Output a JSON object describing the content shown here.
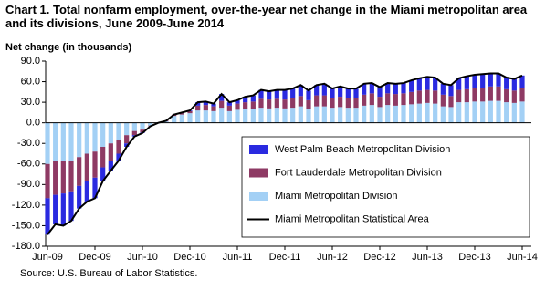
{
  "chart_data": {
    "type": "stacked-bar-line",
    "title": "Chart 1. Total nonfarm employment, over-the-year net change in the Miami metropolitan area and its divisions, June 2009-June 2014",
    "y_label": "Net change (in thousands)",
    "source": "Source: U.S. Bureau of Labor Statistics.",
    "categories": [
      "Jun-09",
      null,
      null,
      null,
      null,
      null,
      "Dec-09",
      null,
      null,
      null,
      null,
      null,
      "Jun-10",
      null,
      null,
      null,
      null,
      null,
      "Dec-10",
      null,
      null,
      null,
      null,
      null,
      "Jun-11",
      null,
      null,
      null,
      null,
      null,
      "Dec-11",
      null,
      null,
      null,
      null,
      null,
      "Jun-12",
      null,
      null,
      null,
      null,
      null,
      "Dec-12",
      null,
      null,
      null,
      null,
      null,
      "Jun-13",
      null,
      null,
      null,
      null,
      null,
      "Dec-13",
      null,
      null,
      null,
      null,
      null,
      "Jun-14"
    ],
    "series": [
      {
        "name": "West Palm Beach Metropolitan Division",
        "color": "#2a2ae0",
        "kind": "bar",
        "values": [
          -53,
          -43,
          -47,
          -43,
          -33,
          -30,
          -30,
          -20,
          -15,
          -10,
          -5,
          -2,
          -1,
          0,
          0,
          0,
          0,
          1,
          1,
          5,
          5,
          4,
          10,
          5,
          5,
          8,
          9,
          13,
          12,
          13,
          14,
          14,
          16,
          14,
          15,
          17,
          14,
          15,
          14,
          14,
          16,
          15,
          14,
          15,
          15,
          15,
          17,
          18,
          19,
          19,
          16,
          16,
          17,
          19,
          19,
          20,
          19,
          19,
          17,
          17,
          18
        ]
      },
      {
        "name": "Fort Lauderdale Metropolitan Division",
        "color": "#8e3a64",
        "kind": "bar",
        "values": [
          -50,
          -50,
          -48,
          -45,
          -42,
          -40,
          -38,
          -30,
          -25,
          -20,
          -12,
          -6,
          -4,
          -1,
          0,
          1,
          2,
          2,
          3,
          7,
          8,
          7,
          10,
          8,
          9,
          10,
          11,
          13,
          13,
          13,
          13,
          14,
          15,
          13,
          16,
          16,
          14,
          15,
          14,
          14,
          16,
          17,
          15,
          17,
          17,
          17,
          18,
          19,
          19,
          19,
          17,
          16,
          18,
          19,
          20,
          20,
          21,
          21,
          19,
          18,
          20
        ]
      },
      {
        "name": "Miami Metropolitan Division",
        "color": "#a3d0f5",
        "kind": "bar",
        "values": [
          -60,
          -55,
          -55,
          -55,
          -50,
          -45,
          -42,
          -35,
          -30,
          -25,
          -18,
          -12,
          -10,
          -4,
          0,
          2,
          10,
          12,
          14,
          18,
          18,
          17,
          22,
          17,
          19,
          20,
          20,
          22,
          21,
          22,
          21,
          22,
          24,
          20,
          24,
          24,
          22,
          23,
          22,
          22,
          25,
          26,
          23,
          26,
          25,
          26,
          27,
          28,
          29,
          28,
          24,
          23,
          30,
          30,
          31,
          31,
          32,
          32,
          30,
          29,
          31
        ]
      },
      {
        "name": "Miami Metropolitan Statistical Area",
        "color": "#000000",
        "kind": "line",
        "values": [
          -163,
          -148,
          -150,
          -143,
          -125,
          -115,
          -110,
          -85,
          -70,
          -55,
          -35,
          -20,
          -15,
          -5,
          0,
          3,
          12,
          15,
          18,
          30,
          31,
          28,
          42,
          30,
          33,
          38,
          40,
          48,
          46,
          48,
          48,
          50,
          55,
          47,
          55,
          57,
          50,
          53,
          50,
          50,
          57,
          58,
          52,
          58,
          57,
          58,
          62,
          65,
          67,
          66,
          57,
          55,
          65,
          68,
          70,
          71,
          72,
          72,
          66,
          64,
          69
        ]
      }
    ],
    "ylim": [
      -180,
      90
    ],
    "yticks": [
      {
        "value": 90,
        "label": "90.0"
      },
      {
        "value": 60,
        "label": "60.0"
      },
      {
        "value": 30,
        "label": "30.0"
      },
      {
        "value": 0,
        "label": "0.0"
      },
      {
        "value": -30,
        "label": "-30.0"
      },
      {
        "value": -60,
        "label": "-60.0"
      },
      {
        "value": -90,
        "label": "-90.0"
      },
      {
        "value": -120,
        "label": "-120.0"
      },
      {
        "value": -150,
        "label": "-150.0"
      },
      {
        "value": -180,
        "label": "-180.0"
      }
    ],
    "grid": false,
    "legend": "lower right"
  }
}
